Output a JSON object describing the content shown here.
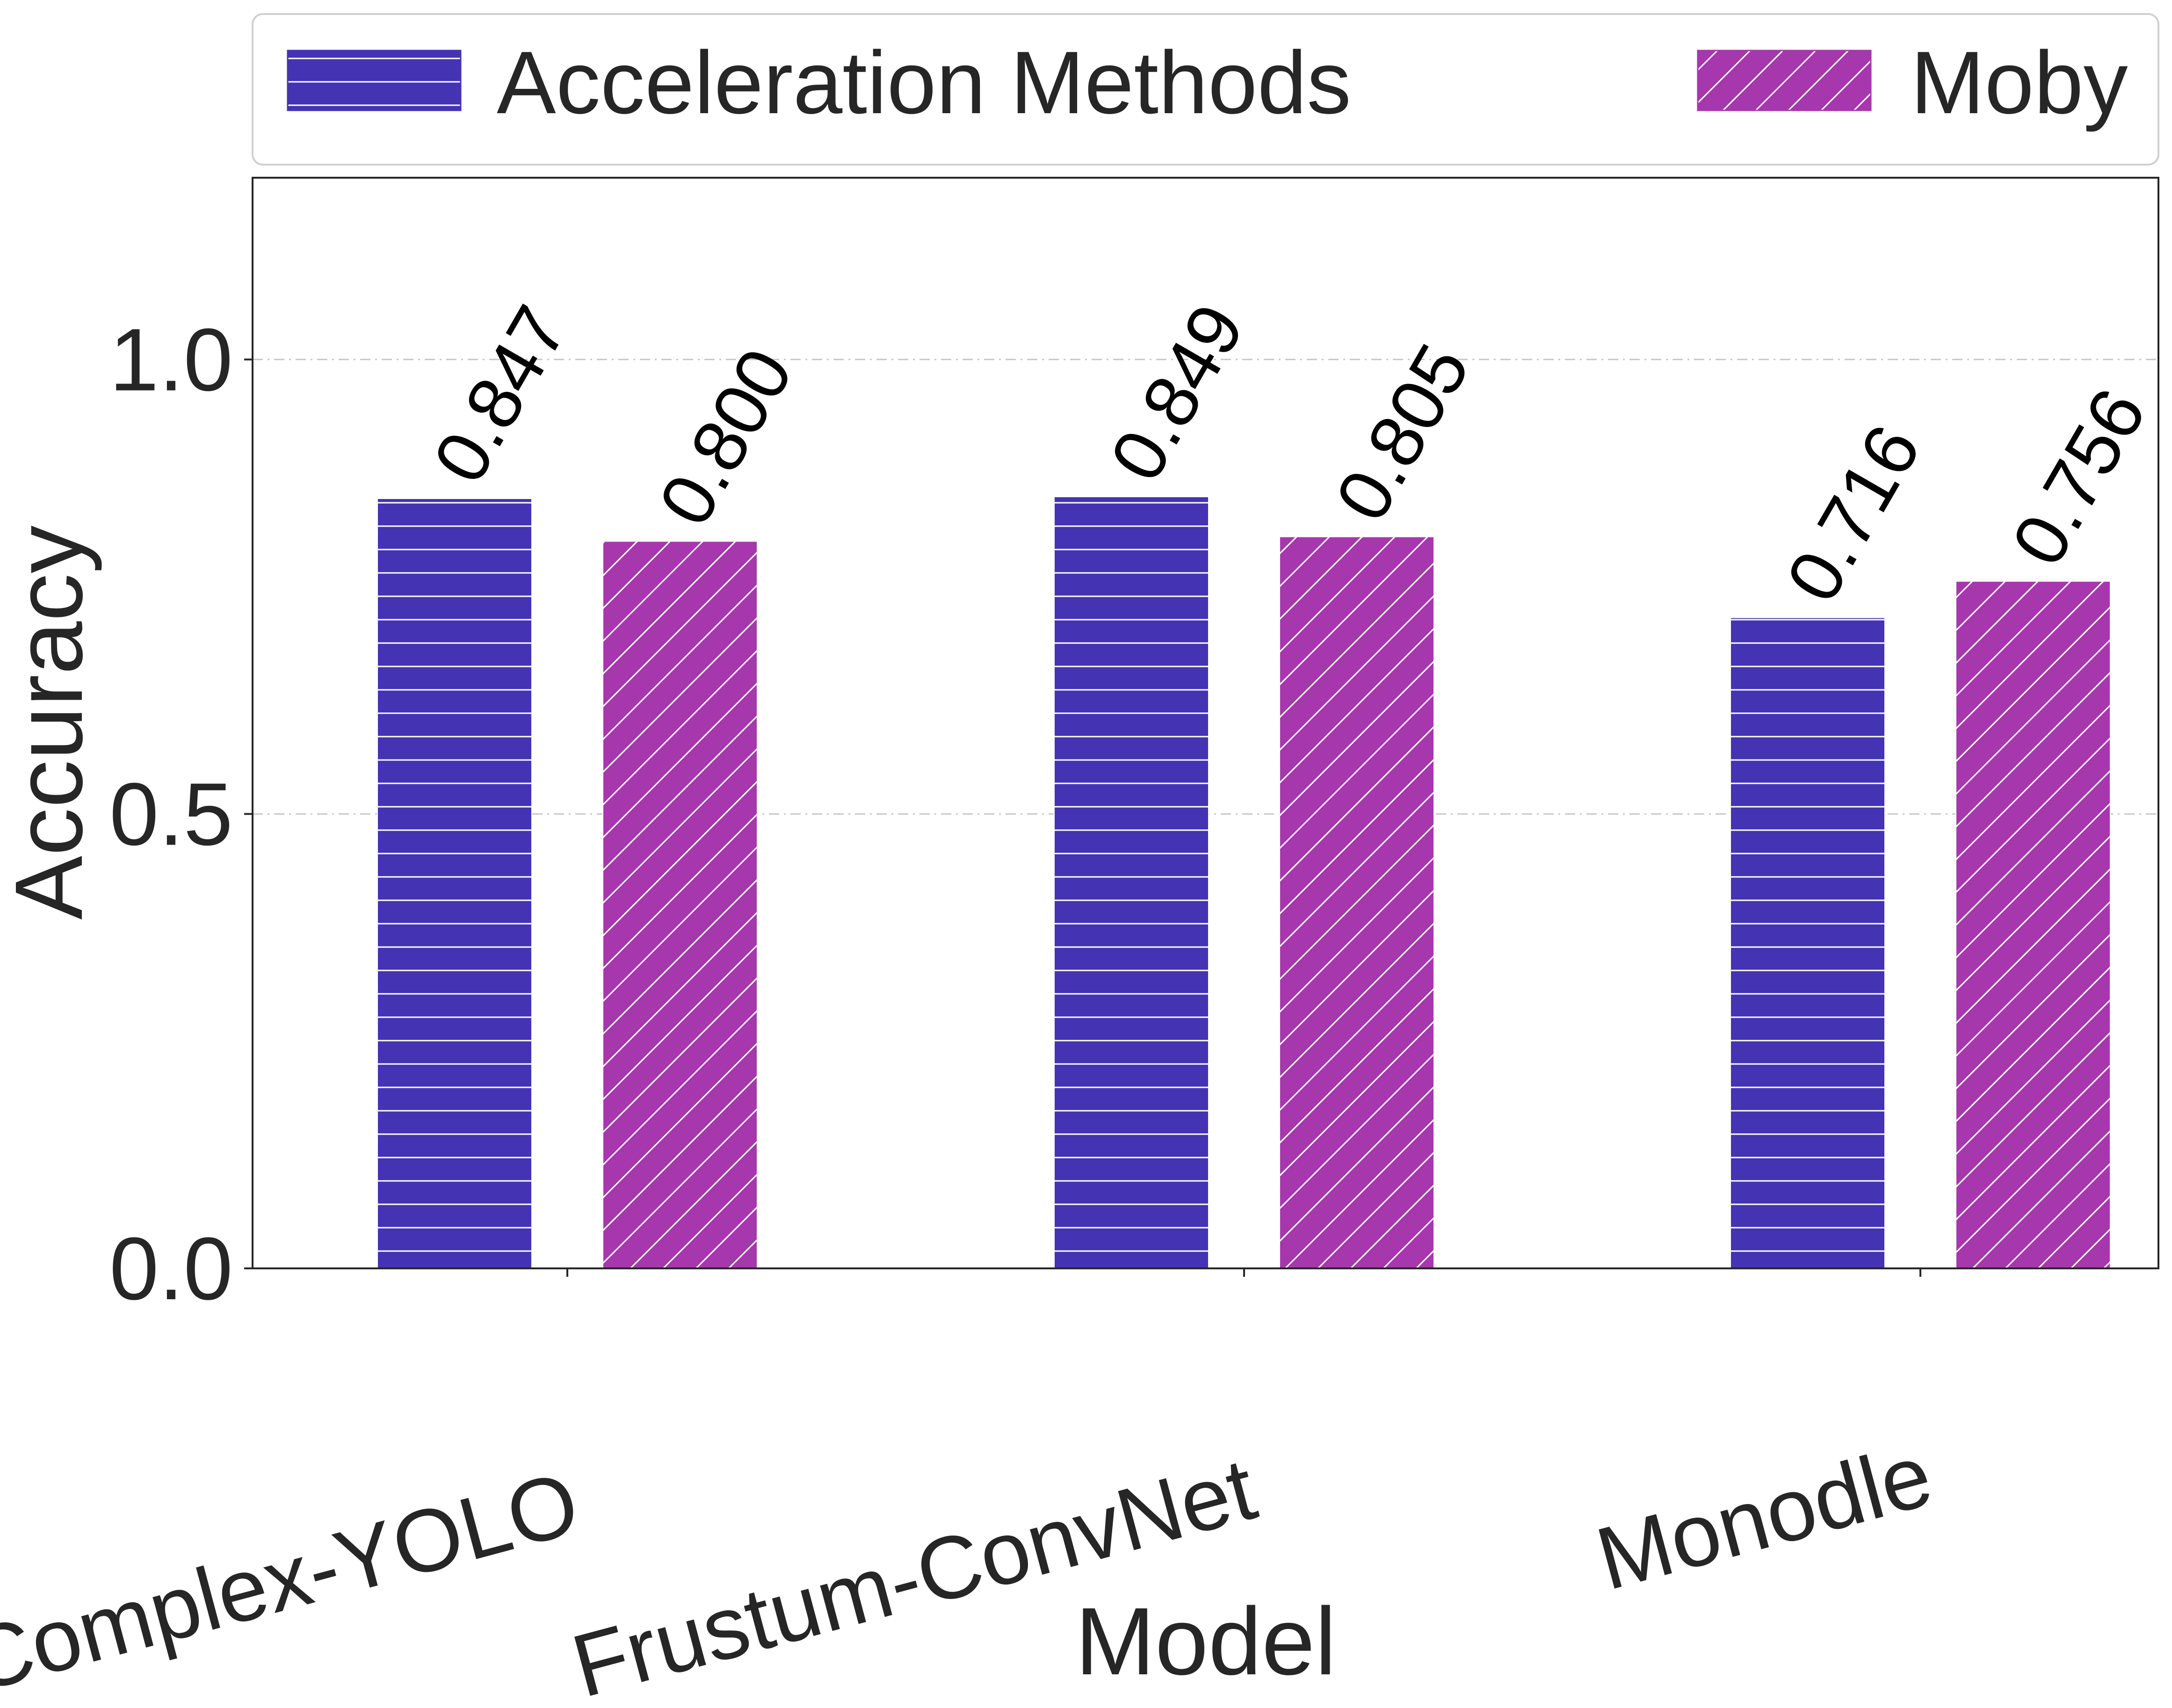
{
  "colors": {
    "acceleration": "#4433b3",
    "moby": "#a637ad",
    "hatch": "#ffffff",
    "text": "#262626",
    "grid": "#c8c8c8"
  },
  "chart_data": {
    "type": "bar",
    "title": "",
    "xlabel": "Model",
    "ylabel": "Accuracy",
    "categories": [
      "Complex-YOLO",
      "Frustum-ConvNet",
      "Monodle"
    ],
    "series": [
      {
        "name": "Acceleration Methods",
        "values": [
          0.847,
          0.849,
          0.716
        ],
        "value_labels": [
          "0.847",
          "0.849",
          "0.716"
        ],
        "color": "#4433b3",
        "hatch": "horizontal"
      },
      {
        "name": "Moby",
        "values": [
          0.8,
          0.805,
          0.756
        ],
        "value_labels": [
          "0.800",
          "0.805",
          "0.756"
        ],
        "color": "#a637ad",
        "hatch": "diagonal"
      }
    ],
    "yticks": [
      0.0,
      0.5,
      1.0
    ],
    "ytick_labels": [
      "0.0",
      "0.5",
      "1.0"
    ],
    "ylim": [
      0,
      1.2
    ],
    "grid": "y",
    "legend_position": "top"
  }
}
